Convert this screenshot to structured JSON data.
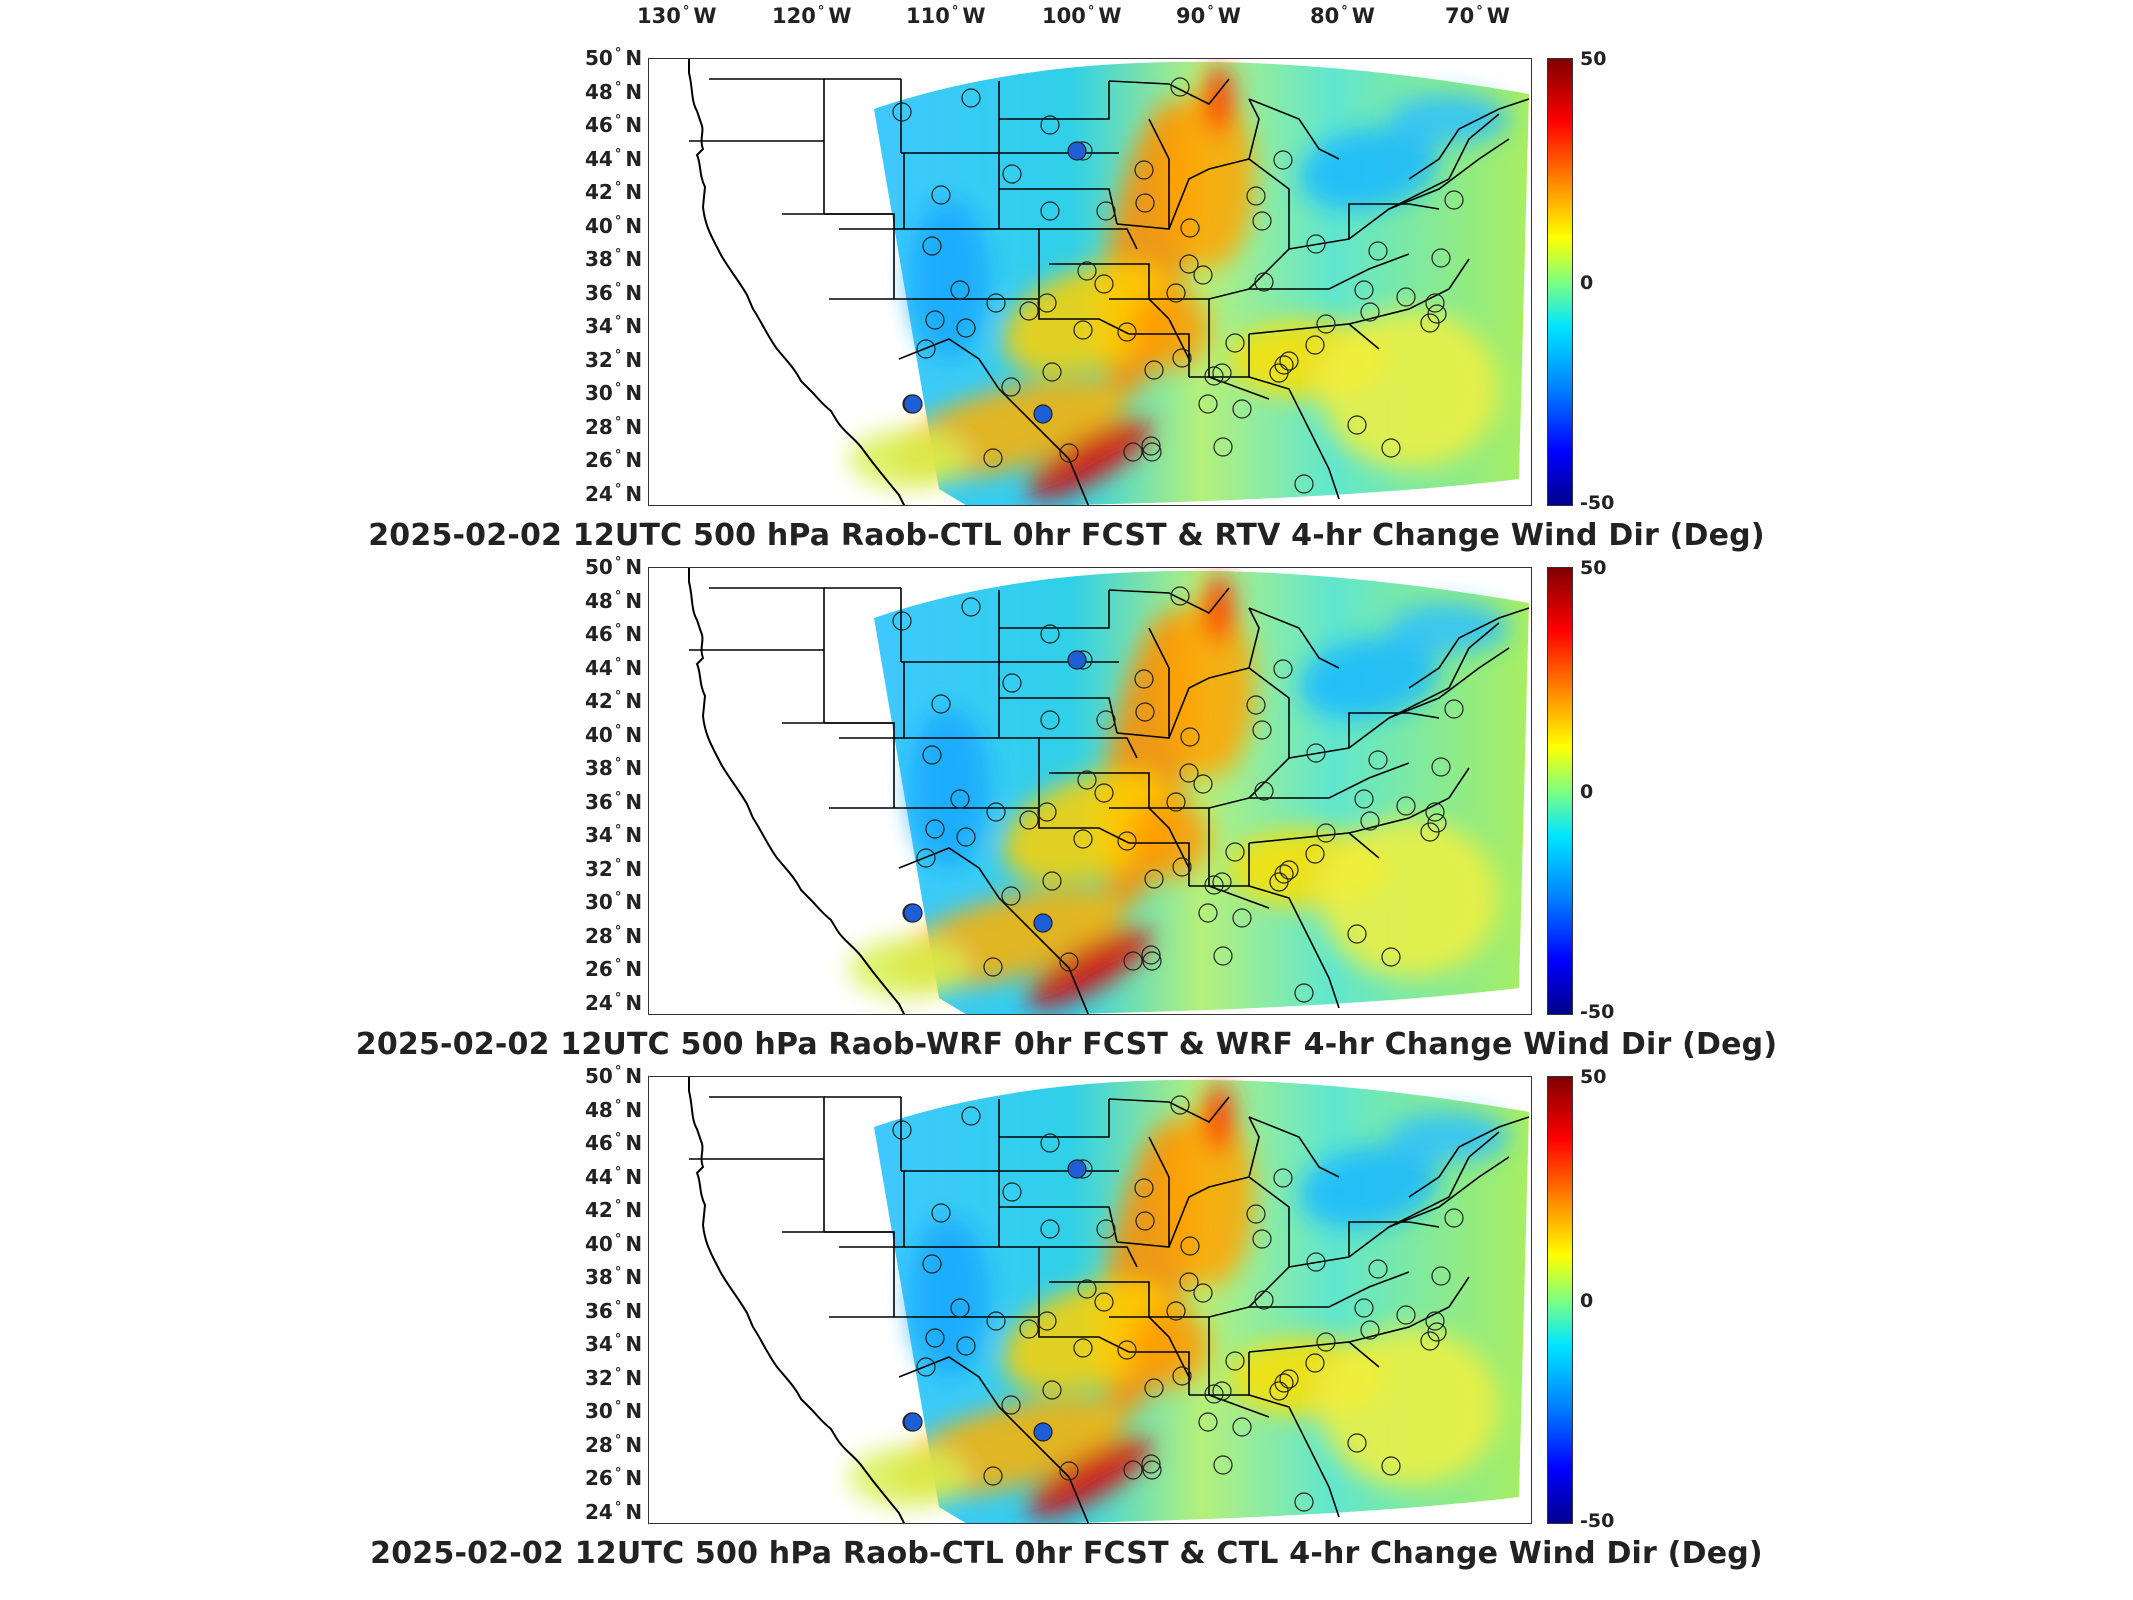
{
  "longitude_labels": [
    {
      "deg": "130",
      "dir": "W"
    },
    {
      "deg": "120",
      "dir": "W"
    },
    {
      "deg": "110",
      "dir": "W"
    },
    {
      "deg": "100",
      "dir": "W"
    },
    {
      "deg": "90",
      "dir": "W"
    },
    {
      "deg": "80",
      "dir": "W"
    },
    {
      "deg": "70",
      "dir": "W"
    }
  ],
  "latitude_labels": [
    {
      "deg": "50",
      "dir": "N"
    },
    {
      "deg": "48",
      "dir": "N"
    },
    {
      "deg": "46",
      "dir": "N"
    },
    {
      "deg": "44",
      "dir": "N"
    },
    {
      "deg": "42",
      "dir": "N"
    },
    {
      "deg": "40",
      "dir": "N"
    },
    {
      "deg": "38",
      "dir": "N"
    },
    {
      "deg": "36",
      "dir": "N"
    },
    {
      "deg": "34",
      "dir": "N"
    },
    {
      "deg": "32",
      "dir": "N"
    },
    {
      "deg": "30",
      "dir": "N"
    },
    {
      "deg": "28",
      "dir": "N"
    },
    {
      "deg": "26",
      "dir": "N"
    },
    {
      "deg": "24",
      "dir": "N"
    }
  ],
  "colorbar": {
    "max": "50",
    "mid": "0",
    "min": "-50",
    "colors": [
      "#800000",
      "#ff0000",
      "#ff8c00",
      "#ffff00",
      "#7fff7f",
      "#00e5ff",
      "#0080ff",
      "#0000ff",
      "#00008b"
    ]
  },
  "panels": [
    {
      "title": "2025-02-02 12UTC 500 hPa Raob-CTL 0hr FCST & RTV 4-hr Change Wind Dir (Deg)"
    },
    {
      "title": "2025-02-02 12UTC 500 hPa Raob-WRF 0hr FCST & WRF 4-hr Change Wind Dir (Deg)"
    },
    {
      "title": "2025-02-02 12UTC 500 hPa Raob-CTL 0hr FCST & CTL 4-hr Change Wind Dir (Deg)"
    }
  ]
}
